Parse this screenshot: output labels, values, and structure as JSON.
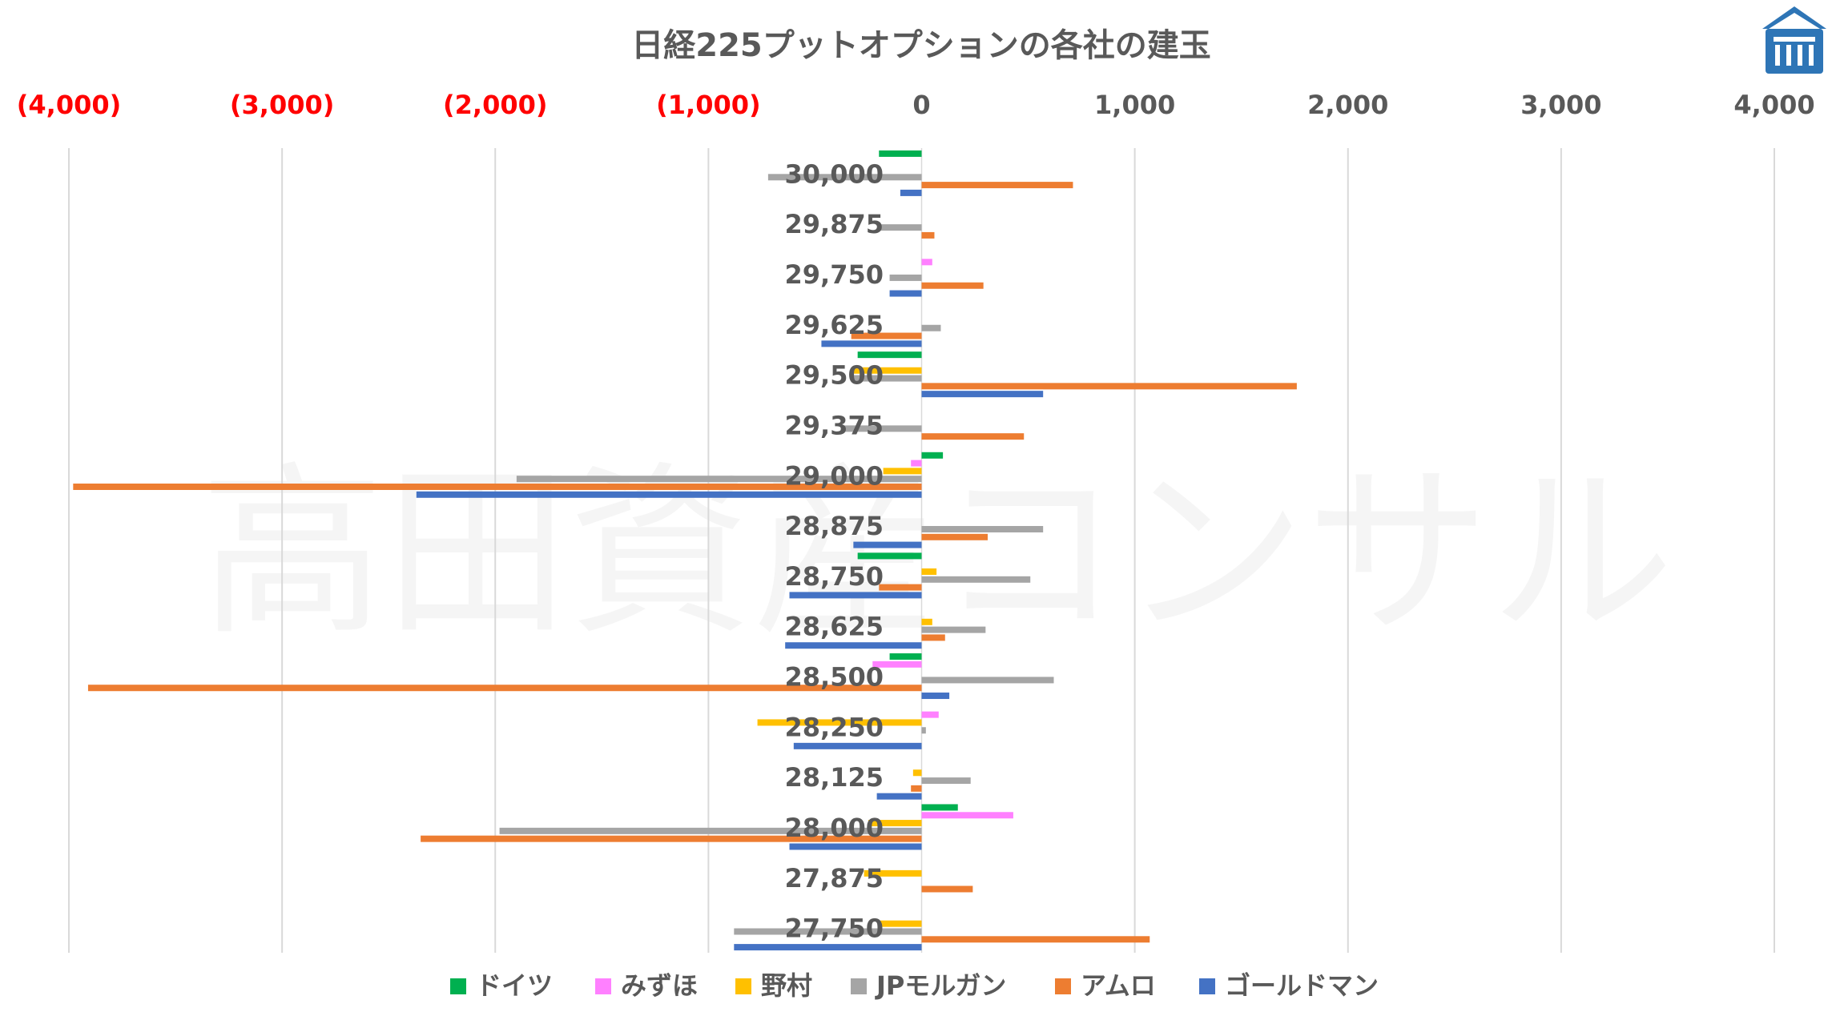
{
  "chart_data": {
    "type": "bar",
    "orientation": "horizontal",
    "title": "日経225プットオプションの各社の建玉",
    "watermark": "高田資産コンサル",
    "logo_icon": "building-logo-icon",
    "categories": [
      "30,000",
      "29,875",
      "29,750",
      "29,625",
      "29,500",
      "29,375",
      "29,000",
      "28,875",
      "28,750",
      "28,625",
      "28,500",
      "28,250",
      "28,125",
      "28,000",
      "27,875",
      "27,750"
    ],
    "xlim": [
      -4000,
      4000
    ],
    "x_ticks": [
      -4000,
      -3000,
      -2000,
      -1000,
      0,
      1000,
      2000,
      3000,
      4000
    ],
    "x_tick_labels": [
      "(4,000)",
      "(3,000)",
      "(2,000)",
      "(1,000)",
      "0",
      "1,000",
      "2,000",
      "3,000",
      "4,000"
    ],
    "negative_tick_color": "#ff0000",
    "positive_tick_color": "#595959",
    "grid": "vertical",
    "legend_position": "bottom",
    "series": [
      {
        "name": "ドイツ",
        "color": "#00b050",
        "values": [
          -200,
          0,
          0,
          0,
          -300,
          0,
          100,
          0,
          -300,
          0,
          -150,
          0,
          0,
          170,
          0,
          0
        ]
      },
      {
        "name": "みずほ",
        "color": "#ff80ff",
        "values": [
          0,
          0,
          50,
          0,
          0,
          0,
          -50,
          0,
          0,
          0,
          -230,
          80,
          0,
          430,
          0,
          0
        ]
      },
      {
        "name": "野村",
        "color": "#ffc000",
        "values": [
          0,
          0,
          0,
          0,
          -320,
          0,
          -180,
          0,
          70,
          50,
          0,
          -770,
          -40,
          -250,
          -270,
          -200
        ]
      },
      {
        "name": "JPモルガン",
        "color": "#a5a5a5",
        "values": [
          -720,
          -200,
          -150,
          90,
          -320,
          -380,
          -1900,
          570,
          510,
          300,
          620,
          20,
          230,
          -1980,
          0,
          -880
        ]
      },
      {
        "name": "アムロ",
        "color": "#ed7d31",
        "values": [
          710,
          60,
          290,
          -330,
          1760,
          480,
          -3980,
          310,
          -200,
          110,
          -3910,
          0,
          -50,
          -2350,
          240,
          1070
        ]
      },
      {
        "name": "ゴールドマン",
        "color": "#4472c4",
        "values": [
          -100,
          0,
          -150,
          -470,
          570,
          0,
          -2370,
          -320,
          -620,
          -640,
          130,
          -600,
          -210,
          -620,
          0,
          -880
        ]
      }
    ]
  }
}
